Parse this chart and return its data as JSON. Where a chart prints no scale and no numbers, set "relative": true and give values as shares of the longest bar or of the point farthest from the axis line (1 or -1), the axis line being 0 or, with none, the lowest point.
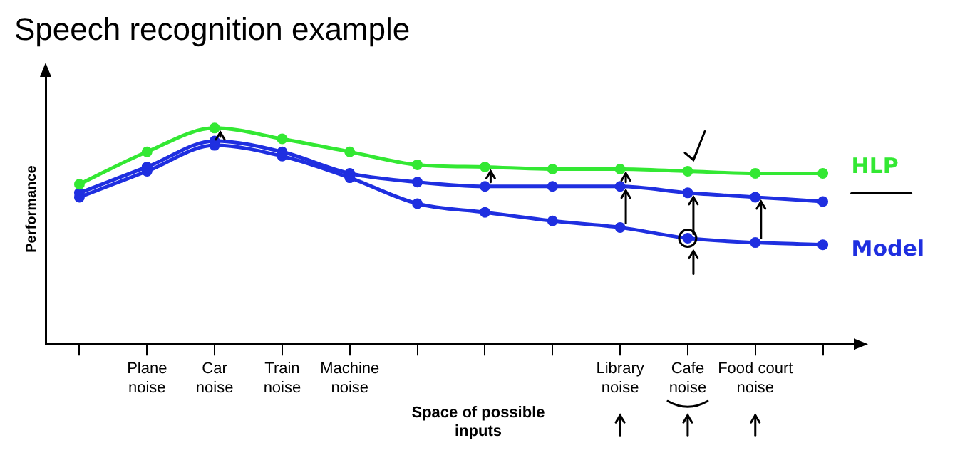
{
  "chart_data": {
    "type": "line",
    "title": "Speech recognition example",
    "xlabel": "Space of possible inputs",
    "ylabel": "Performance",
    "relative": true,
    "grid": false,
    "legend": false,
    "marker": "circle",
    "line_style": "solid",
    "categories": [
      null,
      "Plane noise",
      "Car noise",
      "Train noise",
      "Machine noise",
      null,
      null,
      null,
      "Library noise",
      "Cafe noise",
      "Food court noise",
      null
    ],
    "series": [
      {
        "name": "HLP",
        "color": "#33e833",
        "values": [
          0.74,
          0.89,
          1,
          0.95,
          0.89,
          0.83,
          0.82,
          0.81,
          0.81,
          0.8,
          0.79,
          0.79
        ]
      },
      {
        "color": "#1f2fe0",
        "values": [
          0.7,
          0.82,
          0.94,
          0.89,
          0.79,
          0.75,
          0.73,
          0.73,
          0.73,
          0.7,
          0.68,
          0.66
        ]
      },
      {
        "name": "Model",
        "color": "#1f2fe0",
        "values": [
          0.68,
          0.8,
          0.92,
          0.87,
          0.77,
          0.65,
          0.61,
          0.57,
          0.54,
          0.49,
          0.47,
          0.46
        ]
      }
    ]
  }
}
